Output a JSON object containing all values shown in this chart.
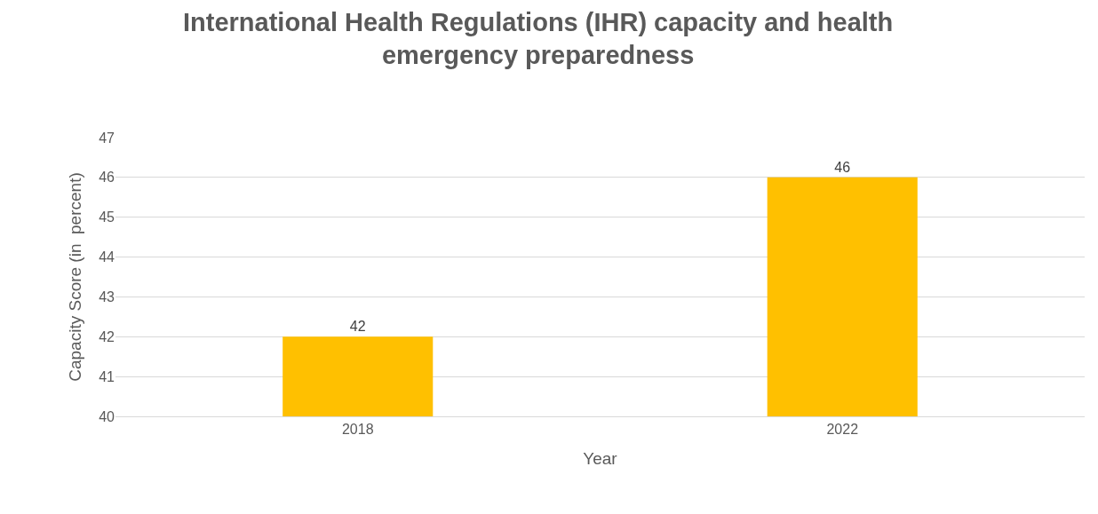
{
  "chart_data": {
    "type": "bar",
    "title": "International Health Regulations (IHR) capacity and health emergency preparedness",
    "xlabel": "Year",
    "ylabel": "Capacity Score (in  percent)",
    "categories": [
      "2018",
      "2022"
    ],
    "values": [
      42,
      46
    ],
    "color": "#ffc000",
    "ylim": [
      40,
      47
    ],
    "yticks": [
      40,
      41,
      42,
      43,
      44,
      45,
      46,
      47
    ],
    "grid": "y",
    "data_labels": true,
    "legend": false
  }
}
